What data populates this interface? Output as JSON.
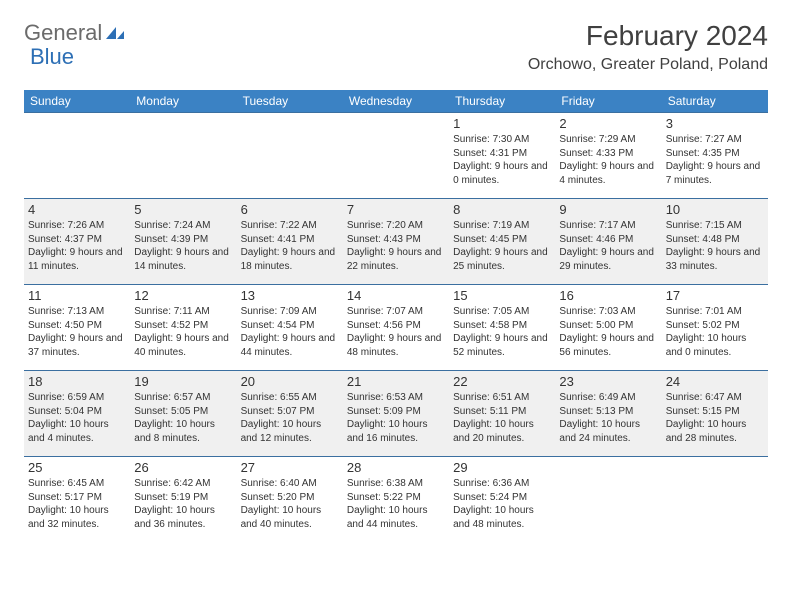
{
  "logo": {
    "text1": "General",
    "text2": "Blue"
  },
  "title": "February 2024",
  "location": "Orchowo, Greater Poland, Poland",
  "header_bg": "#3b82c4",
  "header_fg": "#ffffff",
  "row_border": "#3b6fa0",
  "alt_row_bg": "#f0f0f0",
  "text_color": "#333333",
  "title_color": "#404040",
  "logo_gray": "#6b6b6b",
  "logo_blue": "#2d6fb5",
  "days_of_week": [
    "Sunday",
    "Monday",
    "Tuesday",
    "Wednesday",
    "Thursday",
    "Friday",
    "Saturday"
  ],
  "weeks": [
    [
      null,
      null,
      null,
      null,
      {
        "n": "1",
        "sr": "7:30 AM",
        "ss": "4:31 PM",
        "dl": "9 hours and 0 minutes."
      },
      {
        "n": "2",
        "sr": "7:29 AM",
        "ss": "4:33 PM",
        "dl": "9 hours and 4 minutes."
      },
      {
        "n": "3",
        "sr": "7:27 AM",
        "ss": "4:35 PM",
        "dl": "9 hours and 7 minutes."
      }
    ],
    [
      {
        "n": "4",
        "sr": "7:26 AM",
        "ss": "4:37 PM",
        "dl": "9 hours and 11 minutes."
      },
      {
        "n": "5",
        "sr": "7:24 AM",
        "ss": "4:39 PM",
        "dl": "9 hours and 14 minutes."
      },
      {
        "n": "6",
        "sr": "7:22 AM",
        "ss": "4:41 PM",
        "dl": "9 hours and 18 minutes."
      },
      {
        "n": "7",
        "sr": "7:20 AM",
        "ss": "4:43 PM",
        "dl": "9 hours and 22 minutes."
      },
      {
        "n": "8",
        "sr": "7:19 AM",
        "ss": "4:45 PM",
        "dl": "9 hours and 25 minutes."
      },
      {
        "n": "9",
        "sr": "7:17 AM",
        "ss": "4:46 PM",
        "dl": "9 hours and 29 minutes."
      },
      {
        "n": "10",
        "sr": "7:15 AM",
        "ss": "4:48 PM",
        "dl": "9 hours and 33 minutes."
      }
    ],
    [
      {
        "n": "11",
        "sr": "7:13 AM",
        "ss": "4:50 PM",
        "dl": "9 hours and 37 minutes."
      },
      {
        "n": "12",
        "sr": "7:11 AM",
        "ss": "4:52 PM",
        "dl": "9 hours and 40 minutes."
      },
      {
        "n": "13",
        "sr": "7:09 AM",
        "ss": "4:54 PM",
        "dl": "9 hours and 44 minutes."
      },
      {
        "n": "14",
        "sr": "7:07 AM",
        "ss": "4:56 PM",
        "dl": "9 hours and 48 minutes."
      },
      {
        "n": "15",
        "sr": "7:05 AM",
        "ss": "4:58 PM",
        "dl": "9 hours and 52 minutes."
      },
      {
        "n": "16",
        "sr": "7:03 AM",
        "ss": "5:00 PM",
        "dl": "9 hours and 56 minutes."
      },
      {
        "n": "17",
        "sr": "7:01 AM",
        "ss": "5:02 PM",
        "dl": "10 hours and 0 minutes."
      }
    ],
    [
      {
        "n": "18",
        "sr": "6:59 AM",
        "ss": "5:04 PM",
        "dl": "10 hours and 4 minutes."
      },
      {
        "n": "19",
        "sr": "6:57 AM",
        "ss": "5:05 PM",
        "dl": "10 hours and 8 minutes."
      },
      {
        "n": "20",
        "sr": "6:55 AM",
        "ss": "5:07 PM",
        "dl": "10 hours and 12 minutes."
      },
      {
        "n": "21",
        "sr": "6:53 AM",
        "ss": "5:09 PM",
        "dl": "10 hours and 16 minutes."
      },
      {
        "n": "22",
        "sr": "6:51 AM",
        "ss": "5:11 PM",
        "dl": "10 hours and 20 minutes."
      },
      {
        "n": "23",
        "sr": "6:49 AM",
        "ss": "5:13 PM",
        "dl": "10 hours and 24 minutes."
      },
      {
        "n": "24",
        "sr": "6:47 AM",
        "ss": "5:15 PM",
        "dl": "10 hours and 28 minutes."
      }
    ],
    [
      {
        "n": "25",
        "sr": "6:45 AM",
        "ss": "5:17 PM",
        "dl": "10 hours and 32 minutes."
      },
      {
        "n": "26",
        "sr": "6:42 AM",
        "ss": "5:19 PM",
        "dl": "10 hours and 36 minutes."
      },
      {
        "n": "27",
        "sr": "6:40 AM",
        "ss": "5:20 PM",
        "dl": "10 hours and 40 minutes."
      },
      {
        "n": "28",
        "sr": "6:38 AM",
        "ss": "5:22 PM",
        "dl": "10 hours and 44 minutes."
      },
      {
        "n": "29",
        "sr": "6:36 AM",
        "ss": "5:24 PM",
        "dl": "10 hours and 48 minutes."
      },
      null,
      null
    ]
  ],
  "labels": {
    "sunrise": "Sunrise:",
    "sunset": "Sunset:",
    "daylight": "Daylight:"
  }
}
